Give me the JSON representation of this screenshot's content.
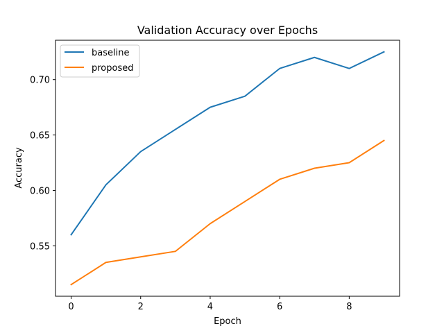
{
  "chart_data": {
    "type": "line",
    "title": "Validation Accuracy over Epochs",
    "xlabel": "Epoch",
    "ylabel": "Accuracy",
    "x": [
      0,
      1,
      2,
      3,
      4,
      5,
      6,
      7,
      8,
      9
    ],
    "xlim": [
      -0.45,
      9.45
    ],
    "ylim": [
      0.5045,
      0.7355
    ],
    "xticks": [
      0,
      2,
      4,
      6,
      8
    ],
    "xtick_labels": [
      "0",
      "2",
      "4",
      "6",
      "8"
    ],
    "yticks": [
      0.55,
      0.6,
      0.65,
      0.7
    ],
    "ytick_labels": [
      "0.55",
      "0.60",
      "0.65",
      "0.70"
    ],
    "grid": false,
    "legend_position": "top-left",
    "series": [
      {
        "name": "baseline",
        "color": "#1f77b4",
        "values": [
          0.56,
          0.605,
          0.635,
          0.655,
          0.675,
          0.685,
          0.71,
          0.72,
          0.71,
          0.725
        ]
      },
      {
        "name": "proposed",
        "color": "#ff7f0e",
        "values": [
          0.515,
          0.535,
          0.54,
          0.545,
          0.57,
          0.59,
          0.61,
          0.62,
          0.625,
          0.645
        ]
      }
    ]
  }
}
